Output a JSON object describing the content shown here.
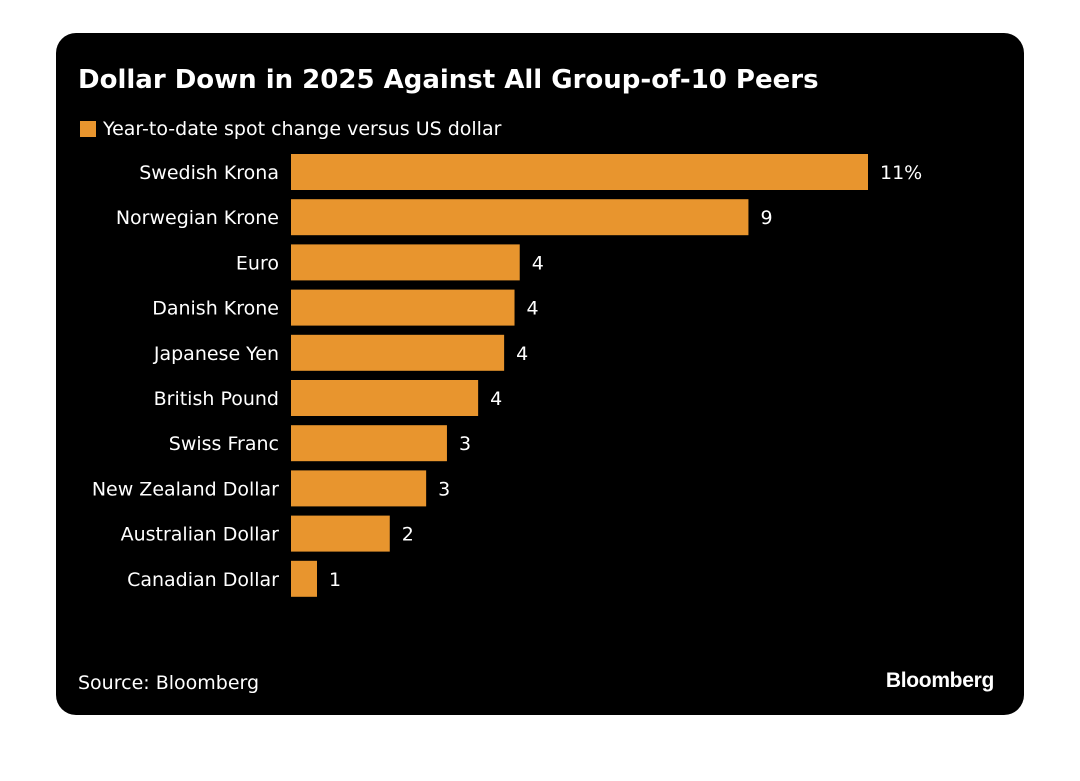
{
  "chart_data": {
    "type": "bar",
    "orientation": "horizontal",
    "title": "Dollar Down in 2025 Against All Group-of-10 Peers",
    "legend": [
      "Year-to-date spot change versus US dollar"
    ],
    "categories": [
      "Swedish Krona",
      "Norwegian Krone",
      "Euro",
      "Danish Krone",
      "Japanese Yen",
      "British Pound",
      "Swiss Franc",
      "New Zealand Dollar",
      "Australian Dollar",
      "Canadian Dollar"
    ],
    "values": [
      11.1,
      8.8,
      4.4,
      4.3,
      4.1,
      3.6,
      3.0,
      2.6,
      1.9,
      0.5
    ],
    "data_labels": [
      "11%",
      "9",
      "4",
      "4",
      "4",
      "4",
      "3",
      "3",
      "2",
      "1"
    ],
    "unit": "%",
    "xlim": [
      0,
      11.1
    ],
    "grid": false,
    "legend_position": "top-left",
    "source": "Source: Bloomberg",
    "brand": "Bloomberg",
    "bar_color": "#E8952E",
    "background_color": "#000000",
    "text_color": "#FFFFFF"
  }
}
